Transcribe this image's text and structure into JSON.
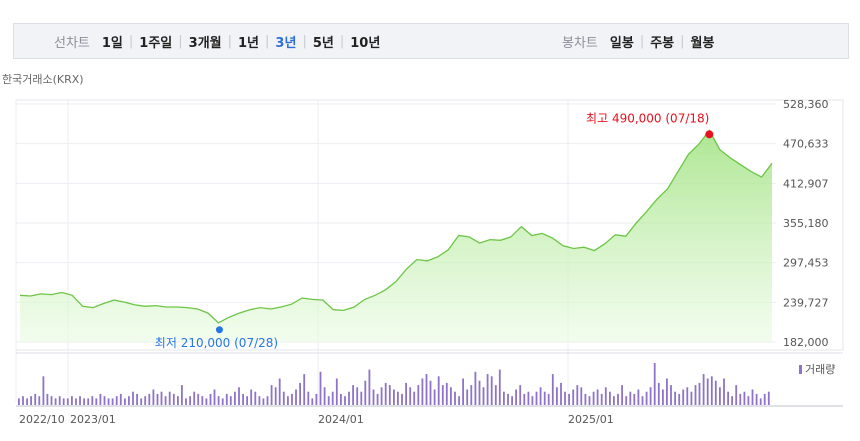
{
  "toolbar": {
    "line_label": "선차트",
    "line_options": [
      "1일",
      "1주일",
      "3개월",
      "1년",
      "3년",
      "5년",
      "10년"
    ],
    "line_active": "3년",
    "candle_label": "봉차트",
    "candle_options": [
      "일봉",
      "주봉",
      "월봉"
    ]
  },
  "source": "한국거래소(KRX)",
  "chart_data": [
    {
      "type": "area",
      "y_ticks": [
        "528,360",
        "470,633",
        "412,907",
        "355,180",
        "297,453",
        "239,727",
        "182,000"
      ],
      "ylim": [
        182000,
        528360
      ],
      "x_ticks": [
        "2022/10",
        "2023/01",
        "2024/01",
        "2025/01"
      ],
      "annotations": {
        "high": {
          "label": "최고 490,000 (07/18)",
          "value": 490000
        },
        "low": {
          "label": "최저 210,000 (07/28)",
          "value": 210000
        }
      },
      "series": [
        {
          "x": [
            "2022/10",
            "2022/10",
            "2022/11",
            "2022/11",
            "2022/12",
            "2022/12",
            "2023/01",
            "2023/01",
            "2023/02",
            "2023/02",
            "2023/03",
            "2023/03",
            "2023/04",
            "2023/04",
            "2023/05",
            "2023/05",
            "2023/06",
            "2023/06",
            "2023/07",
            "2023/07",
            "2023/08",
            "2023/08",
            "2023/09",
            "2023/09",
            "2023/10",
            "2023/10",
            "2023/11",
            "2023/11",
            "2023/12",
            "2023/12",
            "2024/01",
            "2024/01",
            "2024/02",
            "2024/02",
            "2024/03",
            "2024/03",
            "2024/04",
            "2024/04",
            "2024/05",
            "2024/05",
            "2024/06",
            "2024/06",
            "2024/07",
            "2024/07",
            "2024/08",
            "2024/08",
            "2024/09",
            "2024/09",
            "2024/10",
            "2024/10",
            "2024/11",
            "2024/11",
            "2024/12",
            "2024/12",
            "2025/01",
            "2025/01",
            "2025/02",
            "2025/02",
            "2025/03",
            "2025/03",
            "2025/04",
            "2025/04",
            "2025/05",
            "2025/05",
            "2025/06",
            "2025/06",
            "2025/07",
            "2025/07",
            "2025/08",
            "2025/08",
            "2025/09",
            "2025/09",
            "2025/10"
          ],
          "values": [
            250000,
            249000,
            252000,
            251000,
            254000,
            250000,
            234000,
            232000,
            238000,
            243000,
            240000,
            236000,
            234000,
            235000,
            233000,
            233000,
            232000,
            230000,
            224000,
            210000,
            218000,
            224000,
            229000,
            232000,
            230000,
            233000,
            237000,
            246000,
            244000,
            243000,
            229000,
            228000,
            233000,
            244000,
            250000,
            258000,
            270000,
            288000,
            302000,
            300000,
            306000,
            316000,
            337000,
            335000,
            326000,
            331000,
            330000,
            335000,
            350000,
            337000,
            340000,
            333000,
            322000,
            318000,
            320000,
            315000,
            325000,
            338000,
            336000,
            355000,
            372000,
            390000,
            405000,
            430000,
            455000,
            470000,
            490000,
            462000,
            450000,
            440000,
            430000,
            422000,
            442000
          ]
        }
      ],
      "volume_legend": "거래량",
      "volume": [
        3,
        4,
        3,
        4,
        5,
        4,
        13,
        5,
        4,
        3,
        4,
        3,
        3,
        4,
        3,
        4,
        3,
        3,
        4,
        3,
        5,
        4,
        3,
        3,
        4,
        5,
        3,
        4,
        6,
        5,
        3,
        4,
        5,
        7,
        5,
        6,
        4,
        6,
        5,
        4,
        9,
        3,
        4,
        6,
        5,
        4,
        3,
        5,
        7,
        4,
        3,
        5,
        4,
        6,
        8,
        5,
        4,
        7,
        6,
        4,
        3,
        4,
        9,
        8,
        12,
        6,
        4,
        5,
        7,
        10,
        14,
        6,
        3,
        5,
        15,
        8,
        4,
        6,
        12,
        5,
        4,
        6,
        9,
        8,
        6,
        11,
        16,
        7,
        5,
        8,
        10,
        9,
        7,
        6,
        5,
        10,
        8,
        6,
        9,
        12,
        14,
        11,
        7,
        13,
        9,
        10,
        8,
        6,
        4,
        12,
        7,
        9,
        15,
        11,
        8,
        14,
        13,
        9,
        16,
        6,
        5,
        4,
        7,
        9,
        5,
        6,
        4,
        6,
        8,
        6,
        5,
        14,
        8,
        10,
        6,
        5,
        7,
        9,
        8,
        5,
        4,
        6,
        7,
        5,
        8,
        6,
        4,
        5,
        9,
        4,
        6,
        5,
        7,
        4,
        6,
        8,
        19,
        10,
        7,
        12,
        9,
        6,
        5,
        7,
        8,
        6,
        9,
        10,
        14,
        12,
        13,
        11,
        8,
        12,
        6,
        4,
        9,
        5,
        6,
        4,
        7,
        5,
        3,
        5,
        6
      ]
    }
  ]
}
